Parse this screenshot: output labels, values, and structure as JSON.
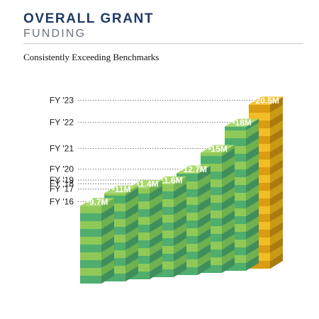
{
  "header": {
    "title_line1": "OVERALL GRANT",
    "title_line2": "FUNDING",
    "subtitle": "Consistently Exceeding Benchmarks"
  },
  "colors": {
    "bar_top": "#a8d86a",
    "bar_front_light": "#8fc958",
    "bar_front_dark": "#4fae6e",
    "bar_side_light": "#6fb14f",
    "bar_side_dark": "#3f8f5c",
    "highlight_top": "#f5c233",
    "highlight_front_light": "#f2bd26",
    "highlight_front_dark": "#d99c12",
    "highlight_side_light": "#c99a14",
    "highlight_side_dark": "#a97c0c",
    "title": "#1f3a64",
    "leader_line": "#555555"
  },
  "chart_data": {
    "type": "bar",
    "title": "OVERALL GRANT FUNDING",
    "subtitle": "Consistently Exceeding Benchmarks",
    "categories": [
      "FY '16",
      "FY '17",
      "FY '18",
      "FY '19",
      "FY '20",
      "FY '21",
      "FY '22",
      "FY '23"
    ],
    "values": [
      9.7,
      11,
      11.4,
      11.6,
      12.7,
      15,
      18,
      20.5
    ],
    "value_labels": [
      "9.7M",
      "11M",
      "11.4M",
      "11.6M",
      "12.7M",
      "15M",
      "18M",
      "20.5M"
    ],
    "currency_symbol": "$",
    "unit": "M",
    "highlight_category": "FY '23",
    "ylim": [
      0,
      21
    ],
    "grid": false,
    "legend": "none"
  }
}
